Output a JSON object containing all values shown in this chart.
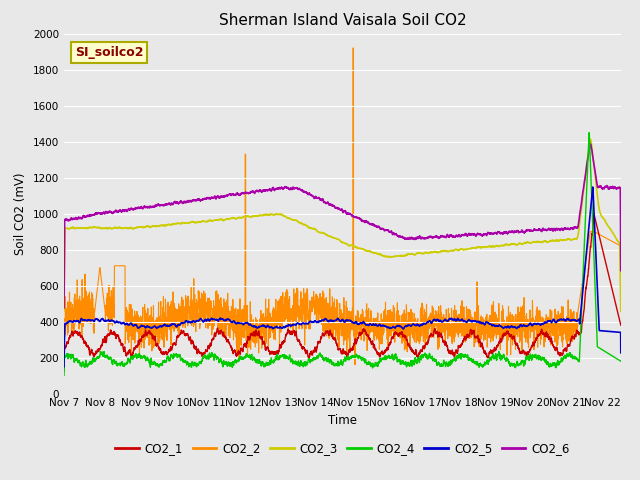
{
  "title": "Sherman Island Vaisala Soil CO2",
  "ylabel": "Soil CO2 (mV)",
  "xlabel": "Time",
  "watermark": "SI_soilco2",
  "ylim": [
    0,
    2000
  ],
  "background_color": "#e8e8e8",
  "series": {
    "CO2_1": {
      "color": "#cc0000",
      "lw": 1.0
    },
    "CO2_2": {
      "color": "#ff8c00",
      "lw": 0.8
    },
    "CO2_3": {
      "color": "#cccc00",
      "lw": 1.2
    },
    "CO2_4": {
      "color": "#00cc00",
      "lw": 1.0
    },
    "CO2_5": {
      "color": "#0000cc",
      "lw": 1.2
    },
    "CO2_6": {
      "color": "#aa00aa",
      "lw": 1.2
    }
  },
  "legend_labels": [
    "CO2_1",
    "CO2_2",
    "CO2_3",
    "CO2_4",
    "CO2_5",
    "CO2_6"
  ],
  "legend_colors": [
    "#cc0000",
    "#ff8c00",
    "#cccc00",
    "#00cc00",
    "#0000cc",
    "#aa00aa"
  ],
  "x_tick_labels": [
    "Nov 7",
    "Nov 8",
    "Nov 9",
    "Nov 10",
    "Nov 11",
    "Nov 12",
    "Nov 13",
    "Nov 14",
    "Nov 15",
    "Nov 16",
    "Nov 17",
    "Nov 18",
    "Nov 19",
    "Nov 20",
    "Nov 21",
    "Nov 22"
  ]
}
